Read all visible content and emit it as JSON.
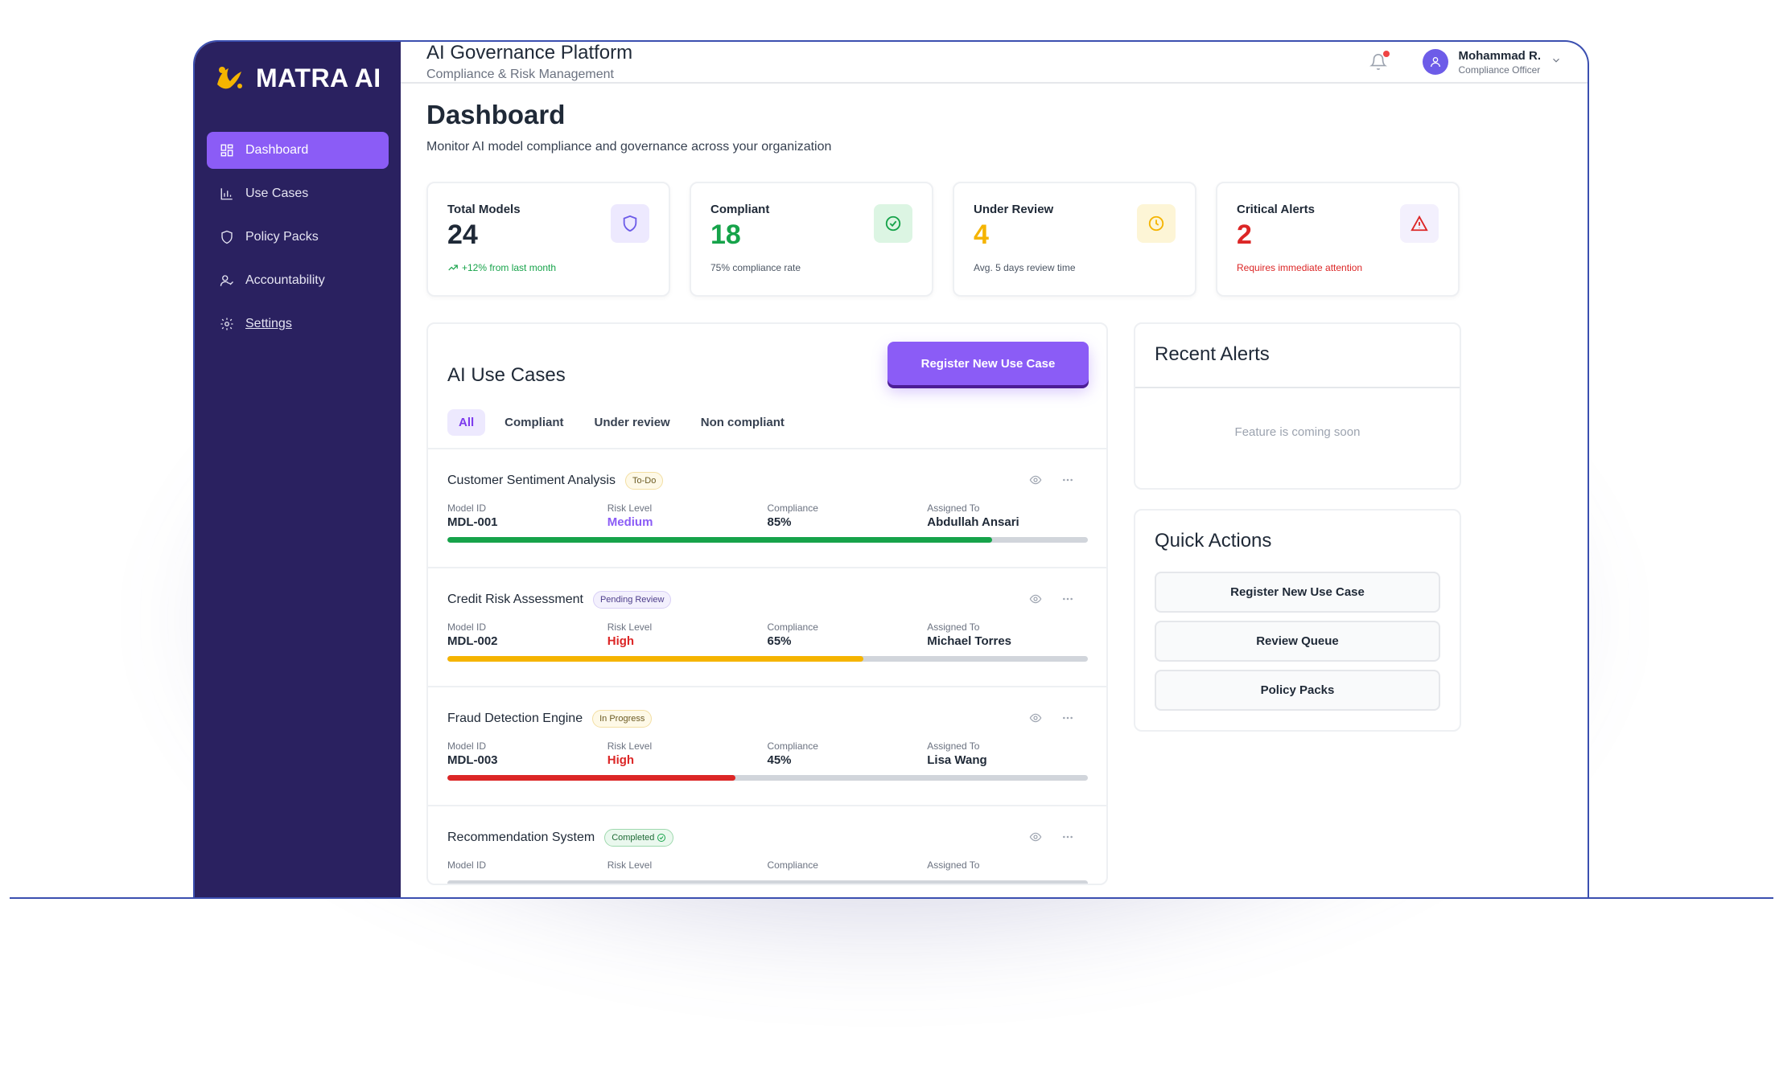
{
  "brand": {
    "name": "MATRA AI"
  },
  "sidebar": {
    "items": [
      {
        "label": "Dashboard",
        "icon": "grid-icon",
        "active": true
      },
      {
        "label": "Use Cases",
        "icon": "bar-chart-icon",
        "active": false
      },
      {
        "label": "Policy Packs",
        "icon": "shield-icon",
        "active": false
      },
      {
        "label": "Accountability",
        "icon": "user-check-icon",
        "active": false
      },
      {
        "label": "Settings",
        "icon": "gear-icon",
        "active": false
      }
    ]
  },
  "header": {
    "title": "AI Governance Platform",
    "subtitle": "Compliance & Risk Management",
    "user": {
      "name": "Mohammad R.",
      "role": "Compliance Officer"
    }
  },
  "page": {
    "title": "Dashboard",
    "subtitle": "Monitor AI model compliance and governance across your organization"
  },
  "stats": [
    {
      "label": "Total Models",
      "value": "24",
      "foot": "+12% from last month",
      "color": "#1f2937",
      "foot_color": "#16a34a",
      "icon": "shield-icon",
      "icon_bg": "#ede9fe",
      "icon_color": "#6d5ce8"
    },
    {
      "label": "Compliant",
      "value": "18",
      "foot": "75% compliance rate",
      "color": "#16a34a",
      "foot_color": "#4b5563",
      "icon": "check-circle-icon",
      "icon_bg": "#dcf5e3",
      "icon_color": "#16a34a"
    },
    {
      "label": "Under Review",
      "value": "4",
      "foot": "Avg. 5 days review time",
      "color": "#f5b400",
      "foot_color": "#4b5563",
      "icon": "clock-icon",
      "icon_bg": "#fdf5d6",
      "icon_color": "#f5b400"
    },
    {
      "label": "Critical Alerts",
      "value": "2",
      "foot": "Requires immediate attention",
      "color": "#dc2626",
      "foot_color": "#dc2626",
      "icon": "alert-triangle-icon",
      "icon_bg": "#f3f0fd",
      "icon_color": "#dc2626"
    }
  ],
  "use_cases": {
    "title": "AI Use Cases",
    "register_label": "Register New Use Case",
    "tabs": [
      "All",
      "Compliant",
      "Under review",
      "Non compliant"
    ],
    "field_labels": {
      "model_id": "Model ID",
      "risk": "Risk Level",
      "compliance": "Compliance",
      "assigned": "Assigned To"
    },
    "rows": [
      {
        "name": "Customer Sentiment Analysis",
        "status": "To-Do",
        "status_type": "todo",
        "model_id": "MDL-001",
        "risk": "Medium",
        "risk_color": "#8b5cf6",
        "compliance": "85%",
        "compliance_value": 85,
        "assigned": "Abdullah Ansari",
        "bar_color": "#16a34a"
      },
      {
        "name": "Credit Risk Assessment",
        "status": "Pending Review",
        "status_type": "pending",
        "model_id": "MDL-002",
        "risk": "High",
        "risk_color": "#dc2626",
        "compliance": "65%",
        "compliance_value": 65,
        "assigned": "Michael Torres",
        "bar_color": "#f5b400"
      },
      {
        "name": "Fraud Detection Engine",
        "status": "In Progress",
        "status_type": "progress",
        "model_id": "MDL-003",
        "risk": "High",
        "risk_color": "#dc2626",
        "compliance": "45%",
        "compliance_value": 45,
        "assigned": "Lisa Wang",
        "bar_color": "#dc2626"
      },
      {
        "name": "Recommendation System",
        "status": "Completed",
        "status_type": "done",
        "model_id": "",
        "risk": "",
        "risk_color": "#1f2937",
        "compliance": "",
        "compliance_value": 0,
        "assigned": "",
        "bar_color": "#16a34a"
      }
    ]
  },
  "alerts": {
    "title": "Recent Alerts",
    "empty": "Feature is coming soon"
  },
  "quick_actions": {
    "title": "Quick Actions",
    "buttons": [
      "Register New Use Case",
      "Review Queue",
      "Policy Packs"
    ]
  }
}
